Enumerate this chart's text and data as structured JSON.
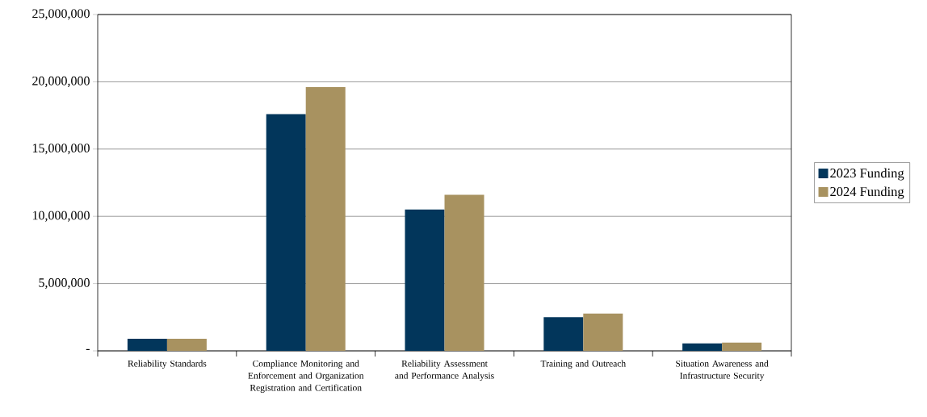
{
  "chart_data": {
    "type": "bar",
    "categories": [
      "Reliability Standards",
      "Compliance Monitoring and Enforcement and Organization Registration and Certification",
      "Reliability Assessment and Performance Analysis",
      "Training and Outreach",
      "Situation Awareness and Infrastructure Security"
    ],
    "series": [
      {
        "name": "2023 Funding",
        "color": "#02365b",
        "values": [
          900000,
          17600000,
          10500000,
          2500000,
          550000
        ]
      },
      {
        "name": "2024 Funding",
        "color": "#a89260",
        "values": [
          900000,
          19600000,
          11600000,
          2770000,
          620000
        ]
      }
    ],
    "ylim": [
      0,
      25000000
    ],
    "yticks": [
      {
        "value": 0,
        "label": "-"
      },
      {
        "value": 5000000,
        "label": "5,000,000"
      },
      {
        "value": 10000000,
        "label": "10,000,000"
      },
      {
        "value": 15000000,
        "label": "15,000,000"
      },
      {
        "value": 20000000,
        "label": "20,000,000"
      },
      {
        "value": 25000000,
        "label": "25,000,000"
      }
    ],
    "grid": "y",
    "legend": "right"
  }
}
